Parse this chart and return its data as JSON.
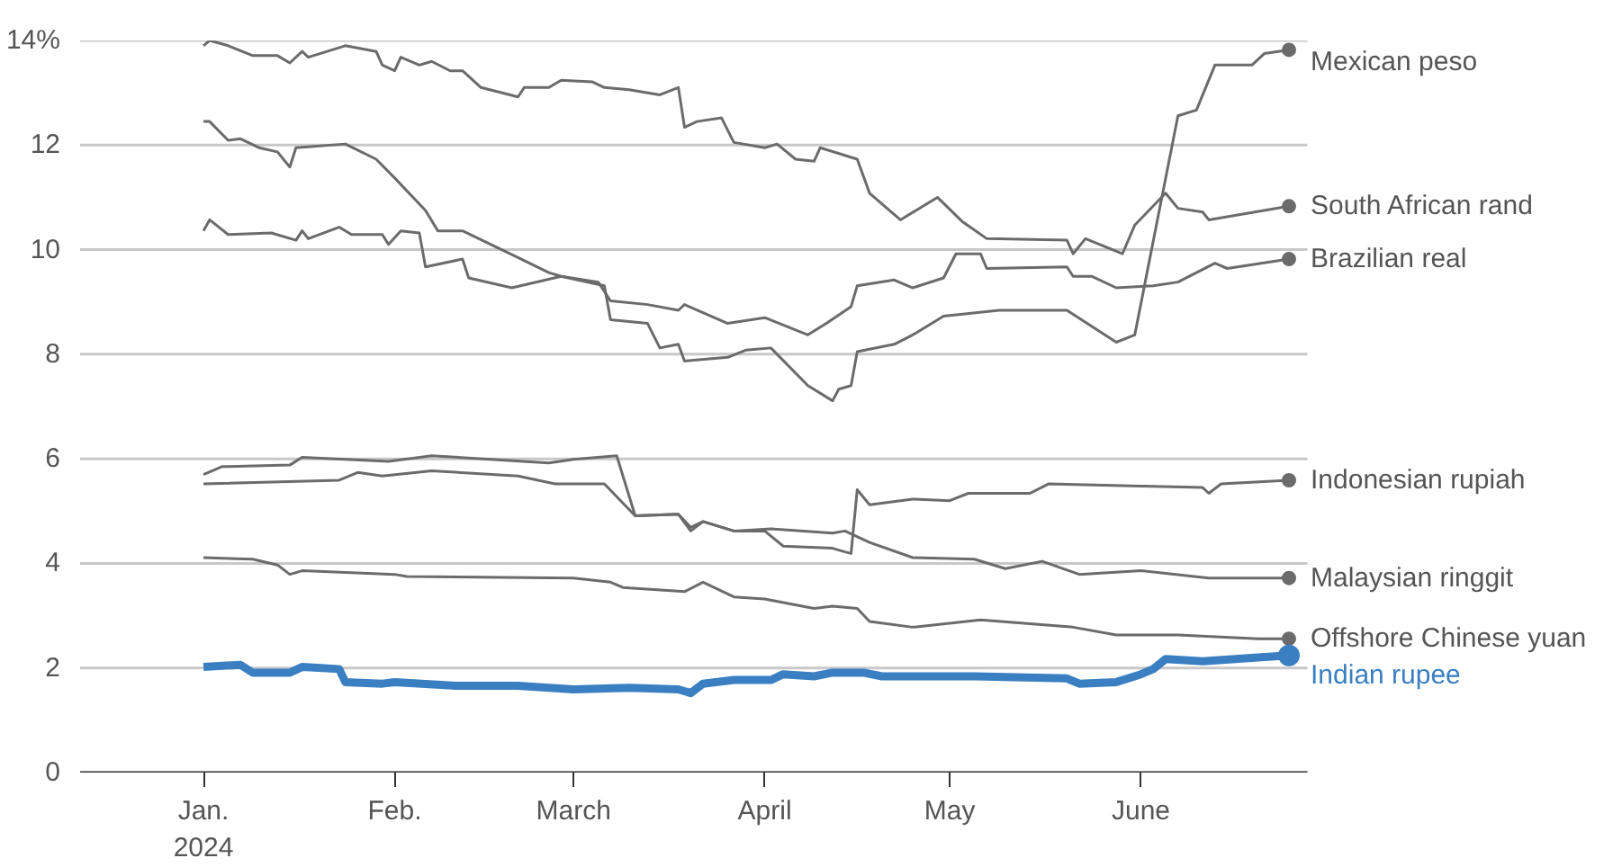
{
  "chart_data": {
    "type": "line",
    "xlim": [
      "2023-12-12",
      "2024-06-28"
    ],
    "xticks": [
      {
        "value": "2024-01-01",
        "label": "Jan.\n2024"
      },
      {
        "value": "2024-02-01",
        "label": "Feb."
      },
      {
        "value": "2024-03-01",
        "label": "March"
      },
      {
        "value": "2024-04-01",
        "label": "April"
      },
      {
        "value": "2024-05-01",
        "label": "May"
      },
      {
        "value": "2024-06-01",
        "label": "June"
      }
    ],
    "ylim": [
      0,
      14
    ],
    "yticks": [
      0,
      2,
      4,
      6,
      8,
      10,
      12,
      {
        "value": 14,
        "label": "14%"
      }
    ],
    "grid": "y",
    "series": [
      {
        "name": "Mexican peso",
        "color": "#6b6b6b",
        "x": [
          "2024-01-01",
          "2024-01-02",
          "2024-01-05",
          "2024-01-07",
          "2024-01-10",
          "2024-01-13",
          "2024-01-15",
          "2024-01-16",
          "2024-01-24",
          "2024-01-29",
          "2024-02-01",
          "2024-02-06",
          "2024-02-08",
          "2024-02-12",
          "2024-02-21",
          "2024-02-26",
          "2024-02-28",
          "2024-03-06",
          "2024-03-07",
          "2024-03-13",
          "2024-03-15",
          "2024-03-18",
          "2024-03-19",
          "2024-03-26",
          "2024-03-29",
          "2024-04-02",
          "2024-04-08",
          "2024-04-12",
          "2024-04-13",
          "2024-04-15",
          "2024-04-16",
          "2024-04-22",
          "2024-04-25",
          "2024-04-30",
          "2024-05-09",
          "2024-05-20",
          "2024-05-28",
          "2024-05-31",
          "2024-06-07",
          "2024-06-10",
          "2024-06-13",
          "2024-06-19",
          "2024-06-21",
          "2024-06-25"
        ],
        "values": [
          12.45,
          12.45,
          12.09,
          12.12,
          11.95,
          11.87,
          11.58,
          11.95,
          12.02,
          11.73,
          11.37,
          10.75,
          10.36,
          10.36,
          9.85,
          9.56,
          9.49,
          9.31,
          8.66,
          8.59,
          8.12,
          8.19,
          7.87,
          7.94,
          8.08,
          8.12,
          7.4,
          7.11,
          7.33,
          7.4,
          8.05,
          8.19,
          8.37,
          8.73,
          8.84,
          8.84,
          8.23,
          8.37,
          12.56,
          12.67,
          13.53,
          13.53,
          13.75,
          13.82
        ]
      },
      {
        "name": "South African rand",
        "color": "#6b6b6b",
        "x": [
          "2024-01-01",
          "2024-01-02",
          "2024-01-05",
          "2024-01-09",
          "2024-01-13",
          "2024-01-15",
          "2024-01-17",
          "2024-01-18",
          "2024-01-24",
          "2024-01-29",
          "2024-01-30",
          "2024-02-01",
          "2024-02-02",
          "2024-02-05",
          "2024-02-07",
          "2024-02-10",
          "2024-02-12",
          "2024-02-15",
          "2024-02-21",
          "2024-02-22",
          "2024-02-26",
          "2024-02-28",
          "2024-03-04",
          "2024-03-06",
          "2024-03-10",
          "2024-03-15",
          "2024-03-18",
          "2024-03-19",
          "2024-03-21",
          "2024-03-25",
          "2024-03-27",
          "2024-04-01",
          "2024-04-03",
          "2024-04-06",
          "2024-04-09",
          "2024-04-10",
          "2024-04-16",
          "2024-04-18",
          "2024-04-23",
          "2024-04-29",
          "2024-05-03",
          "2024-05-07",
          "2024-05-20",
          "2024-05-21",
          "2024-05-23",
          "2024-05-29",
          "2024-05-31",
          "2024-06-05",
          "2024-06-07",
          "2024-06-11",
          "2024-06-12",
          "2024-06-25"
        ],
        "values": [
          13.9,
          14.0,
          13.9,
          13.71,
          13.71,
          13.57,
          13.79,
          13.68,
          13.9,
          13.79,
          13.53,
          13.42,
          13.68,
          13.53,
          13.6,
          13.42,
          13.42,
          13.1,
          12.92,
          13.1,
          13.1,
          13.24,
          13.21,
          13.1,
          13.06,
          12.96,
          13.1,
          12.34,
          12.45,
          12.52,
          12.05,
          11.95,
          12.02,
          11.73,
          11.69,
          11.95,
          11.73,
          11.08,
          10.57,
          11.0,
          10.54,
          10.21,
          10.18,
          9.92,
          10.21,
          9.92,
          10.47,
          11.08,
          10.79,
          10.72,
          10.57,
          10.83
        ]
      },
      {
        "name": "Brazilian real",
        "color": "#6b6b6b",
        "x": [
          "2024-01-01",
          "2024-01-02",
          "2024-01-05",
          "2024-01-12",
          "2024-01-16",
          "2024-01-17",
          "2024-01-18",
          "2024-01-23",
          "2024-01-25",
          "2024-01-30",
          "2024-01-31",
          "2024-02-02",
          "2024-02-05",
          "2024-02-06",
          "2024-02-12",
          "2024-02-13",
          "2024-02-20",
          "2024-02-28",
          "2024-03-05",
          "2024-03-07",
          "2024-03-13",
          "2024-03-18",
          "2024-03-19",
          "2024-03-26",
          "2024-04-01",
          "2024-04-08",
          "2024-04-11",
          "2024-04-15",
          "2024-04-16",
          "2024-04-22",
          "2024-04-25",
          "2024-04-30",
          "2024-05-02",
          "2024-05-06",
          "2024-05-07",
          "2024-05-20",
          "2024-05-21",
          "2024-05-24",
          "2024-05-28",
          "2024-06-03",
          "2024-06-07",
          "2024-06-10",
          "2024-06-13",
          "2024-06-15",
          "2024-06-25"
        ],
        "values": [
          10.36,
          10.57,
          10.29,
          10.32,
          10.18,
          10.36,
          10.21,
          10.43,
          10.29,
          10.29,
          10.1,
          10.36,
          10.32,
          9.67,
          9.82,
          9.46,
          9.27,
          9.49,
          9.38,
          9.02,
          8.95,
          8.84,
          8.95,
          8.59,
          8.7,
          8.37,
          8.59,
          8.91,
          9.31,
          9.42,
          9.27,
          9.46,
          9.92,
          9.92,
          9.64,
          9.67,
          9.49,
          9.49,
          9.27,
          9.31,
          9.38,
          9.56,
          9.74,
          9.64,
          9.82
        ]
      },
      {
        "name": "Indonesian rupiah",
        "color": "#6b6b6b",
        "x": [
          "2024-01-01",
          "2024-01-04",
          "2024-01-15",
          "2024-01-17",
          "2024-01-31",
          "2024-02-07",
          "2024-02-26",
          "2024-03-01",
          "2024-03-08",
          "2024-03-11",
          "2024-03-18",
          "2024-03-20",
          "2024-03-22",
          "2024-03-27",
          "2024-04-01",
          "2024-04-04",
          "2024-04-12",
          "2024-04-14",
          "2024-04-15",
          "2024-04-16",
          "2024-04-18",
          "2024-04-25",
          "2024-05-01",
          "2024-05-04",
          "2024-05-14",
          "2024-05-17",
          "2024-06-01",
          "2024-06-11",
          "2024-06-12",
          "2024-06-14",
          "2024-06-25"
        ],
        "values": [
          5.7,
          5.85,
          5.88,
          6.03,
          5.95,
          6.06,
          5.92,
          5.99,
          6.06,
          4.91,
          4.94,
          4.62,
          4.8,
          4.62,
          4.62,
          4.33,
          4.29,
          4.22,
          4.19,
          5.41,
          5.12,
          5.23,
          5.2,
          5.34,
          5.34,
          5.52,
          5.48,
          5.45,
          5.34,
          5.52,
          5.59
        ]
      },
      {
        "name": "Malaysian ringgit",
        "color": "#6b6b6b",
        "x": [
          "2024-01-01",
          "2024-01-23",
          "2024-01-26",
          "2024-01-30",
          "2024-02-07",
          "2024-02-21",
          "2024-02-27",
          "2024-03-06",
          "2024-03-11",
          "2024-03-18",
          "2024-03-20",
          "2024-03-22",
          "2024-03-27",
          "2024-04-02",
          "2024-04-12",
          "2024-04-14",
          "2024-04-18",
          "2024-04-25",
          "2024-05-05",
          "2024-05-10",
          "2024-05-16",
          "2024-05-22",
          "2024-06-01",
          "2024-06-12",
          "2024-06-25"
        ],
        "values": [
          5.52,
          5.59,
          5.74,
          5.67,
          5.77,
          5.67,
          5.52,
          5.52,
          4.91,
          4.94,
          4.69,
          4.8,
          4.62,
          4.66,
          4.58,
          4.62,
          4.4,
          4.11,
          4.08,
          3.9,
          4.04,
          3.79,
          3.86,
          3.72,
          3.72
        ]
      },
      {
        "name": "Offshore Chinese yuan",
        "color": "#6b6b6b",
        "x": [
          "2024-01-01",
          "2024-01-09",
          "2024-01-13",
          "2024-01-15",
          "2024-01-17",
          "2024-02-01",
          "2024-02-03",
          "2024-03-01",
          "2024-03-07",
          "2024-03-09",
          "2024-03-19",
          "2024-03-22",
          "2024-03-27",
          "2024-04-01",
          "2024-04-09",
          "2024-04-12",
          "2024-04-16",
          "2024-04-18",
          "2024-04-25",
          "2024-05-06",
          "2024-05-21",
          "2024-05-28",
          "2024-06-07",
          "2024-06-20",
          "2024-06-25"
        ],
        "values": [
          4.11,
          4.08,
          3.97,
          3.79,
          3.86,
          3.79,
          3.75,
          3.72,
          3.64,
          3.54,
          3.46,
          3.64,
          3.36,
          3.32,
          3.14,
          3.18,
          3.14,
          2.89,
          2.78,
          2.92,
          2.78,
          2.63,
          2.63,
          2.56,
          2.56
        ]
      },
      {
        "name": "Indian rupee",
        "color": "#3a7fc1",
        "x": [
          "2024-01-01",
          "2024-01-07",
          "2024-01-09",
          "2024-01-15",
          "2024-01-17",
          "2024-01-23",
          "2024-01-24",
          "2024-01-30",
          "2024-02-01",
          "2024-02-11",
          "2024-02-21",
          "2024-03-01",
          "2024-03-10",
          "2024-03-18",
          "2024-03-20",
          "2024-03-22",
          "2024-03-27",
          "2024-04-02",
          "2024-04-04",
          "2024-04-09",
          "2024-04-12",
          "2024-04-17",
          "2024-04-20",
          "2024-05-05",
          "2024-05-20",
          "2024-05-22",
          "2024-05-28",
          "2024-06-01",
          "2024-06-03",
          "2024-06-05",
          "2024-06-11",
          "2024-06-20",
          "2024-06-25"
        ],
        "values": [
          2.02,
          2.06,
          1.91,
          1.91,
          2.02,
          1.98,
          1.73,
          1.7,
          1.73,
          1.66,
          1.66,
          1.59,
          1.62,
          1.59,
          1.52,
          1.7,
          1.77,
          1.77,
          1.88,
          1.84,
          1.91,
          1.91,
          1.84,
          1.84,
          1.8,
          1.7,
          1.73,
          1.88,
          1.98,
          2.17,
          2.13,
          2.2,
          2.24
        ]
      }
    ]
  }
}
